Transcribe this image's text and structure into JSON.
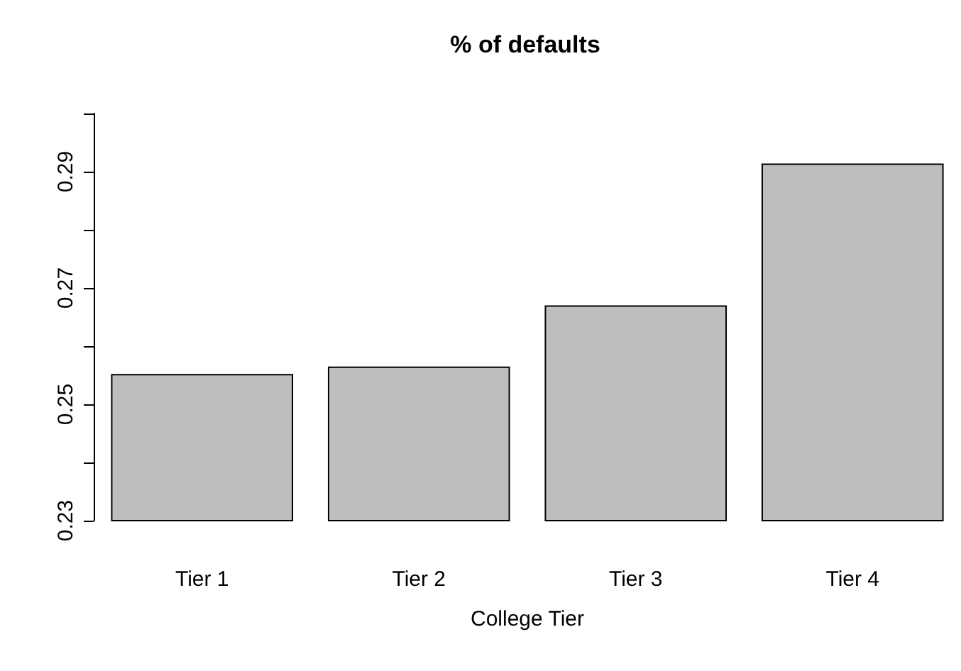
{
  "chart_data": {
    "type": "bar",
    "title": "% of defaults",
    "xlabel": "College Tier",
    "categories": [
      "Tier 1",
      "Tier 2",
      "Tier 3",
      "Tier 4"
    ],
    "values": [
      0.2552,
      0.2565,
      0.267,
      0.2914
    ],
    "color": "#bebebe",
    "ylim": [
      0.23,
      0.3
    ],
    "yticks": [
      0.23,
      {
        "value": 0.24,
        "label": null
      },
      0.25,
      {
        "value": 0.26,
        "label": null
      },
      0.27,
      {
        "value": 0.28,
        "label": null
      },
      0.29,
      {
        "value": 0.3,
        "label": null
      }
    ],
    "grid": false
  }
}
